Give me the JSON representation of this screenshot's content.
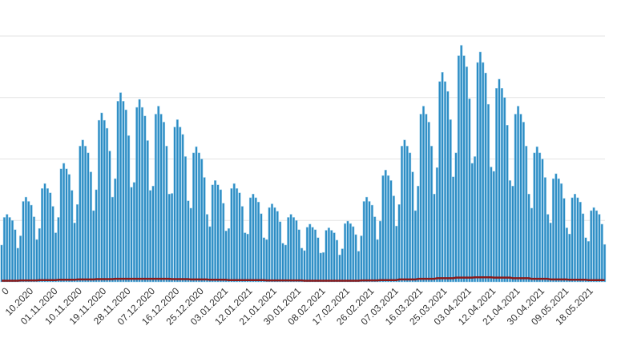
{
  "chart_data": {
    "type": "bar",
    "categories": [
      null,
      null,
      "0",
      null,
      null,
      null,
      null,
      null,
      null,
      null,
      null,
      "10.2020",
      null,
      null,
      null,
      null,
      null,
      null,
      null,
      null,
      "01.11.2020",
      null,
      null,
      null,
      null,
      null,
      null,
      null,
      null,
      "10.11.2020",
      null,
      null,
      null,
      null,
      null,
      null,
      null,
      null,
      "19.11.2020",
      null,
      null,
      null,
      null,
      null,
      null,
      null,
      null,
      "28.11.2020",
      null,
      null,
      null,
      null,
      null,
      null,
      null,
      null,
      "07.12.2020",
      null,
      null,
      null,
      null,
      null,
      null,
      null,
      null,
      "16.12.2020",
      null,
      null,
      null,
      null,
      null,
      null,
      null,
      null,
      "25.12.2020",
      null,
      null,
      null,
      null,
      null,
      null,
      null,
      null,
      "03.01.2021",
      null,
      null,
      null,
      null,
      null,
      null,
      null,
      null,
      "12.01.2021",
      null,
      null,
      null,
      null,
      null,
      null,
      null,
      null,
      "21.01.2021",
      null,
      null,
      null,
      null,
      null,
      null,
      null,
      null,
      "30.01.2021",
      null,
      null,
      null,
      null,
      null,
      null,
      null,
      null,
      "08.02.2021",
      null,
      null,
      null,
      null,
      null,
      null,
      null,
      null,
      "17.02.2021",
      null,
      null,
      null,
      null,
      null,
      null,
      null,
      null,
      "26.02.2021",
      null,
      null,
      null,
      null,
      null,
      null,
      null,
      null,
      "07.03.2021",
      null,
      null,
      null,
      null,
      null,
      null,
      null,
      null,
      "16.03.2021",
      null,
      null,
      null,
      null,
      null,
      null,
      null,
      null,
      "25.03.2021",
      null,
      null,
      null,
      null,
      null,
      null,
      null,
      null,
      "03.04.2021",
      null,
      null,
      null,
      null,
      null,
      null,
      null,
      null,
      "12.04.2021",
      null,
      null,
      null,
      null,
      null,
      null,
      null,
      null,
      "21.04.2021",
      null,
      null,
      null,
      null,
      null,
      null,
      null,
      null,
      "30.04.2021",
      null,
      null,
      null,
      null,
      null,
      null,
      null,
      null,
      "09.05.2021",
      null,
      null,
      null,
      null,
      null,
      null,
      null,
      null,
      "18.05.2021",
      null,
      null,
      null,
      null,
      null
    ],
    "series": [
      {
        "color": "#2b8cc4",
        "values": [
          600,
          1050,
          1100,
          1050,
          1000,
          850,
          550,
          750,
          1310,
          1380,
          1310,
          1250,
          1060,
          690,
          870,
          1520,
          1600,
          1520,
          1450,
          1230,
          800,
          1050,
          1840,
          1930,
          1840,
          1750,
          1490,
          960,
          1260,
          2210,
          2310,
          2210,
          2100,
          1790,
          1160,
          1500,
          2630,
          2750,
          2630,
          2500,
          2130,
          1380,
          1680,
          2940,
          3080,
          2940,
          2800,
          2380,
          1540,
          1620,
          2840,
          2970,
          2840,
          2700,
          2300,
          1490,
          1560,
          2730,
          2860,
          2730,
          2600,
          2210,
          1430,
          1440,
          2520,
          2640,
          2520,
          2400,
          2040,
          1320,
          1200,
          2100,
          2200,
          2100,
          2000,
          1700,
          1100,
          900,
          1580,
          1650,
          1580,
          1500,
          1280,
          830,
          870,
          1520,
          1600,
          1520,
          1450,
          1230,
          800,
          780,
          1370,
          1430,
          1370,
          1300,
          1110,
          720,
          690,
          1210,
          1270,
          1210,
          1150,
          980,
          630,
          600,
          1050,
          1100,
          1050,
          1000,
          850,
          550,
          510,
          890,
          940,
          890,
          850,
          720,
          470,
          480,
          840,
          880,
          840,
          800,
          680,
          440,
          540,
          950,
          990,
          950,
          900,
          770,
          500,
          750,
          1310,
          1380,
          1310,
          1250,
          1060,
          690,
          990,
          1730,
          1820,
          1730,
          1650,
          1400,
          910,
          1260,
          2210,
          2310,
          2210,
          2100,
          1790,
          1160,
          1560,
          2730,
          2860,
          2730,
          2600,
          2210,
          1430,
          1860,
          3260,
          3410,
          3260,
          3100,
          2640,
          1710,
          2100,
          3680,
          3850,
          3680,
          3500,
          2980,
          1930,
          2040,
          3570,
          3740,
          3570,
          3400,
          2890,
          1870,
          1800,
          3150,
          3300,
          3150,
          3000,
          2550,
          1650,
          1560,
          2730,
          2860,
          2730,
          2600,
          2210,
          1430,
          1200,
          2100,
          2200,
          2100,
          2000,
          1700,
          1100,
          960,
          1680,
          1760,
          1680,
          1600,
          1360,
          880,
          780,
          1370,
          1430,
          1370,
          1300,
          1110,
          720,
          660,
          1160,
          1210,
          1160,
          1100,
          940,
          610
        ]
      },
      {
        "type": "line",
        "color": "#8b1a1a",
        "values": [
          20,
          20,
          20,
          20,
          20,
          20,
          20,
          25,
          25,
          25,
          25,
          25,
          25,
          25,
          30,
          30,
          30,
          30,
          30,
          30,
          30,
          35,
          35,
          35,
          35,
          35,
          35,
          35,
          40,
          40,
          40,
          40,
          40,
          40,
          40,
          45,
          45,
          45,
          45,
          45,
          45,
          45,
          50,
          50,
          50,
          50,
          50,
          50,
          50,
          50,
          50,
          50,
          50,
          50,
          50,
          50,
          50,
          50,
          50,
          50,
          50,
          50,
          50,
          45,
          45,
          45,
          45,
          45,
          45,
          45,
          40,
          40,
          40,
          40,
          40,
          40,
          40,
          35,
          35,
          35,
          35,
          35,
          35,
          35,
          30,
          30,
          30,
          30,
          30,
          30,
          30,
          30,
          30,
          30,
          30,
          30,
          30,
          30,
          25,
          25,
          25,
          25,
          25,
          25,
          25,
          25,
          25,
          25,
          25,
          25,
          25,
          25,
          20,
          20,
          20,
          20,
          20,
          20,
          20,
          20,
          20,
          20,
          20,
          20,
          20,
          20,
          20,
          20,
          20,
          20,
          20,
          20,
          20,
          25,
          25,
          25,
          25,
          25,
          25,
          25,
          30,
          30,
          30,
          30,
          30,
          30,
          30,
          40,
          40,
          40,
          40,
          40,
          40,
          40,
          50,
          50,
          50,
          50,
          50,
          50,
          50,
          60,
          60,
          60,
          60,
          60,
          60,
          60,
          70,
          70,
          70,
          70,
          70,
          70,
          70,
          75,
          75,
          75,
          75,
          75,
          75,
          75,
          70,
          70,
          70,
          70,
          70,
          70,
          70,
          60,
          60,
          60,
          60,
          60,
          60,
          60,
          50,
          50,
          50,
          50,
          50,
          50,
          50,
          40,
          40,
          40,
          40,
          40,
          40,
          40,
          35,
          35,
          35,
          35,
          35,
          35,
          35,
          30,
          30,
          30,
          30,
          30,
          30,
          30
        ]
      }
    ],
    "ylim": [
      0,
      4000
    ],
    "ygrid": [
      1000,
      2000,
      3000,
      4000
    ]
  }
}
